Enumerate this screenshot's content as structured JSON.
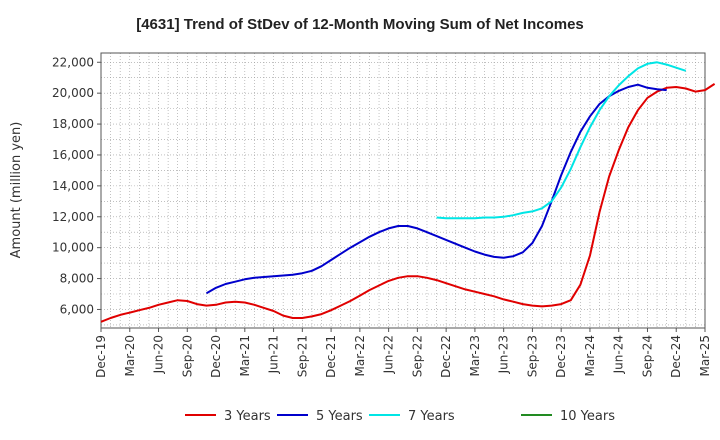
{
  "chart_data": {
    "type": "line",
    "title": "[4631]  Trend of StDev of 12-Month Moving Sum of Net Incomes",
    "xlabel": "",
    "ylabel": "Amount (million yen)",
    "ylim": [
      4800,
      22600
    ],
    "yticks": [
      6000,
      8000,
      10000,
      12000,
      14000,
      16000,
      18000,
      20000,
      22000
    ],
    "ytick_labels": [
      "6,000",
      "8,000",
      "10,000",
      "12,000",
      "14,000",
      "16,000",
      "18,000",
      "20,000",
      "22,000"
    ],
    "x_start": "Dec-19",
    "x_ticks": [
      "Dec-19",
      "Mar-20",
      "Jun-20",
      "Sep-20",
      "Dec-20",
      "Mar-21",
      "Jun-21",
      "Sep-21",
      "Dec-21",
      "Mar-22",
      "Jun-22",
      "Sep-22",
      "Dec-22",
      "Mar-23",
      "Jun-23",
      "Sep-23",
      "Dec-23",
      "Mar-24",
      "Jun-24",
      "Sep-24",
      "Dec-24",
      "Mar-25"
    ],
    "grid": true,
    "legend_position": "bottom",
    "series": [
      {
        "name": "3 Years",
        "color": "#e00000",
        "start": "Dec-19",
        "values": [
          5200,
          5450,
          5650,
          5800,
          5950,
          6100,
          6300,
          6450,
          6600,
          6550,
          6350,
          6250,
          6300,
          6450,
          6500,
          6450,
          6300,
          6100,
          5900,
          5600,
          5450,
          5450,
          5550,
          5700,
          5950,
          6250,
          6550,
          6900,
          7250,
          7550,
          7850,
          8050,
          8150,
          8150,
          8050,
          7900,
          7700,
          7500,
          7300,
          7150,
          7000,
          6850,
          6650,
          6500,
          6350,
          6250,
          6200,
          6250,
          6350,
          6600,
          7600,
          9500,
          12300,
          14600,
          16300,
          17800,
          18900,
          19700,
          20100,
          20350,
          20400,
          20300,
          20100,
          20200,
          20600
        ]
      },
      {
        "name": "5 Years",
        "color": "#0000cc",
        "start": "Nov-20",
        "values": [
          7050,
          7400,
          7650,
          7800,
          7950,
          8050,
          8100,
          8150,
          8200,
          8250,
          8350,
          8500,
          8800,
          9200,
          9600,
          10000,
          10350,
          10700,
          11000,
          11250,
          11400,
          11400,
          11250,
          11000,
          10750,
          10500,
          10250,
          10000,
          9750,
          9550,
          9400,
          9350,
          9450,
          9700,
          10300,
          11400,
          13000,
          14700,
          16200,
          17500,
          18500,
          19300,
          19800,
          20150,
          20400,
          20550,
          20350,
          20250,
          20200
        ]
      },
      {
        "name": "7 Years",
        "color": "#00e5e5",
        "start": "Nov-22",
        "values": [
          11950,
          11900,
          11900,
          11900,
          11900,
          11950,
          11950,
          12000,
          12100,
          12250,
          12350,
          12550,
          13000,
          13900,
          15100,
          16500,
          17800,
          18900,
          19800,
          20500,
          21100,
          21600,
          21900,
          22000,
          21850,
          21650,
          21450
        ]
      },
      {
        "name": "10 Years",
        "color": "#228b22",
        "start": "Dec-19",
        "values": []
      }
    ]
  }
}
